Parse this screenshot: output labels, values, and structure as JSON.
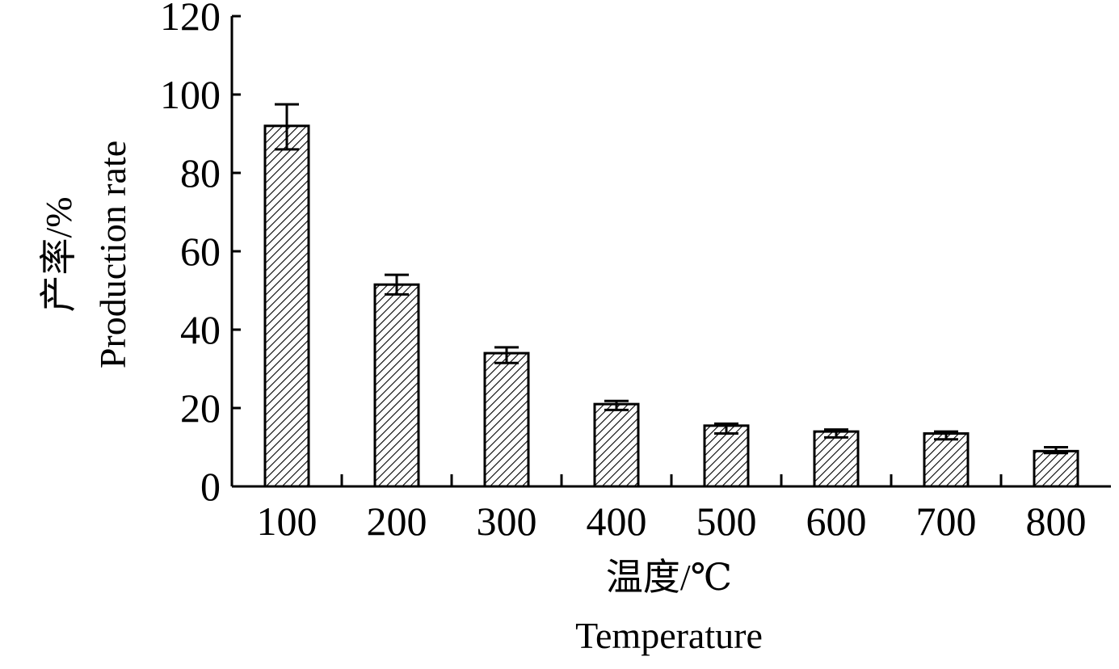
{
  "chart_data": {
    "type": "bar",
    "categories": [
      "100",
      "200",
      "300",
      "400",
      "500",
      "600",
      "700",
      "800"
    ],
    "values": [
      92,
      51.5,
      34,
      21,
      15.5,
      14,
      13.5,
      9
    ],
    "error_low": [
      86,
      49,
      31.5,
      19.5,
      13.5,
      12.5,
      12,
      8.5
    ],
    "error_high": [
      97.5,
      54,
      35.5,
      21.8,
      16,
      14.5,
      14,
      10
    ],
    "xlabel": "温度/℃",
    "xlabel_en": "Temperature",
    "ylabel": "产率/%",
    "ylabel_en": "Production rate",
    "ylim": [
      0,
      120
    ],
    "yticks": [
      "0",
      "20",
      "40",
      "60",
      "80",
      "100",
      "120"
    ],
    "bar_fill": "hatched",
    "grid": false
  }
}
